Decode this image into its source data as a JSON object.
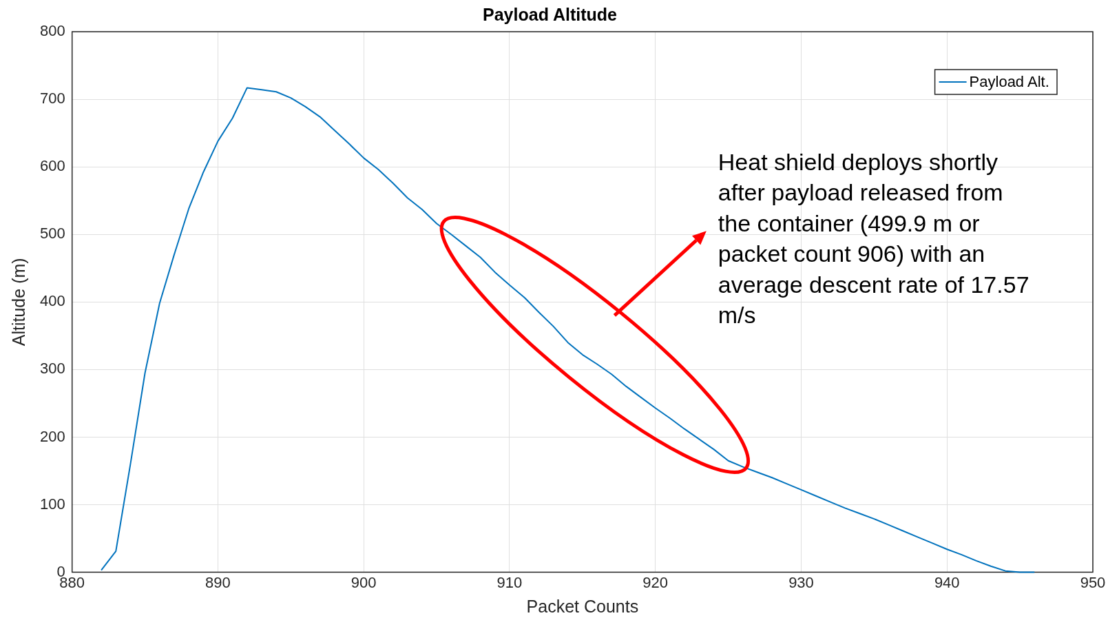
{
  "chart_data": {
    "type": "line",
    "title": "Payload Altitude",
    "xlabel": "Packet Counts",
    "ylabel": "Altitude (m)",
    "annotations": [
      "Heat shield deploys shortly after payload released from the container (499.9 m or packet count 906) with an average descent rate of 17.57 m/s"
    ],
    "x": [
      882,
      883,
      884,
      885,
      886,
      887,
      888,
      889,
      890,
      891,
      892,
      893,
      894,
      895,
      896,
      897,
      898,
      899,
      900,
      901,
      902,
      903,
      904,
      905,
      906,
      907,
      908,
      909,
      910,
      911,
      912,
      913,
      914,
      915,
      916,
      917,
      918,
      919,
      920,
      921,
      922,
      923,
      924,
      925,
      926,
      927,
      928,
      929,
      930,
      931,
      932,
      933,
      934,
      935,
      936,
      937,
      938,
      939,
      940,
      941,
      942,
      943,
      944,
      945,
      946
    ],
    "series": [
      {
        "name": "Payload Alt.",
        "color": "#0072bd",
        "values": [
          3,
          31,
          160,
          295,
          398,
          470,
          538,
          592,
          638,
          672,
          717,
          714,
          711,
          702,
          689,
          674,
          654,
          634,
          613,
          596,
          576,
          554,
          537,
          516,
          500,
          483,
          466,
          444,
          425,
          407,
          385,
          364,
          340,
          322,
          308,
          293,
          275,
          259,
          243,
          228,
          212,
          197,
          182,
          165,
          156,
          148,
          140,
          131,
          122,
          113,
          104,
          95,
          87,
          79,
          70,
          61,
          52,
          43,
          34,
          26,
          17,
          9,
          2,
          0,
          0
        ]
      }
    ],
    "xlim": [
      880,
      950
    ],
    "xticks": [
      880,
      890,
      900,
      910,
      920,
      930,
      940,
      950
    ],
    "ylim": [
      0,
      800
    ],
    "yticks": [
      0,
      100,
      200,
      300,
      400,
      500,
      600,
      700,
      800
    ],
    "grid": true,
    "legend": "top right",
    "marker": "none",
    "line_style": "solid"
  }
}
